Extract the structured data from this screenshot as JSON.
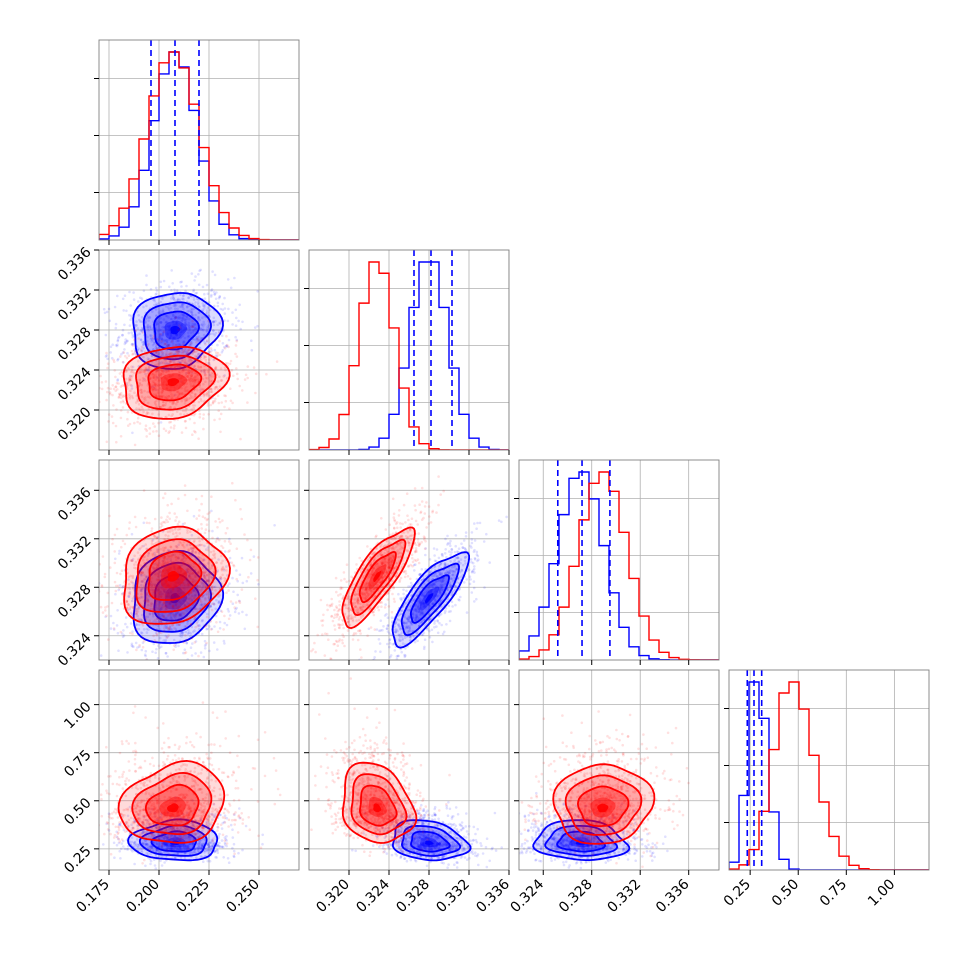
{
  "colors": {
    "blue": "#0000ff",
    "red": "#ff0000",
    "grid": "#b0b0b0",
    "frame": "#808080"
  },
  "chart_data": {
    "type": "corner",
    "parameters": [
      {
        "range": [
          0.17,
          0.27
        ],
        "ticks": [
          "0.175",
          "0.200",
          "0.225",
          "0.250"
        ],
        "tick_values": [
          0.175,
          0.2,
          0.225,
          0.25
        ]
      },
      {
        "range": [
          0.316,
          0.336
        ],
        "ticks": [
          "0.320",
          "0.324",
          "0.328",
          "0.332",
          "0.336"
        ],
        "tick_values": [
          0.32,
          0.324,
          0.328,
          0.332,
          0.336
        ]
      },
      {
        "range": [
          0.322,
          0.3385
        ],
        "ticks": [
          "0.324",
          "0.328",
          "0.332",
          "0.336"
        ],
        "tick_values": [
          0.324,
          0.328,
          0.332,
          0.336
        ]
      },
      {
        "range": [
          0.14,
          1.18
        ],
        "ticks": [
          "0.25",
          "0.50",
          "0.75",
          "1.00"
        ],
        "tick_values": [
          0.25,
          0.5,
          0.75,
          1.0
        ]
      }
    ],
    "grid": true,
    "series": [
      {
        "color_key": "blue",
        "quantiles": [
          [
            0.196,
            0.208,
            0.22
          ],
          [
            0.3265,
            0.3282,
            0.3303
          ],
          [
            0.3252,
            0.3272,
            0.3295
          ],
          [
            0.235,
            0.27,
            0.31
          ]
        ],
        "means": [
          0.208,
          0.328,
          0.3271,
          0.28
        ],
        "sigmas": [
          0.011,
          0.0019,
          0.0019,
          0.045
        ],
        "correlations": {
          "1-0": 0.1,
          "2-0": 0.1,
          "2-1": 0.8,
          "3-0": 0.0,
          "3-1": -0.2,
          "3-2": -0.1
        }
      },
      {
        "color_key": "red",
        "means": [
          0.207,
          0.3228,
          0.3289,
          0.46
        ],
        "sigmas": [
          0.013,
          0.0018,
          0.002,
          0.09
        ],
        "correlations": {
          "1-0": 0.15,
          "2-0": 0.15,
          "2-1": 0.8,
          "3-0": 0.15,
          "3-1": -0.2,
          "3-2": 0.05
        }
      }
    ]
  }
}
